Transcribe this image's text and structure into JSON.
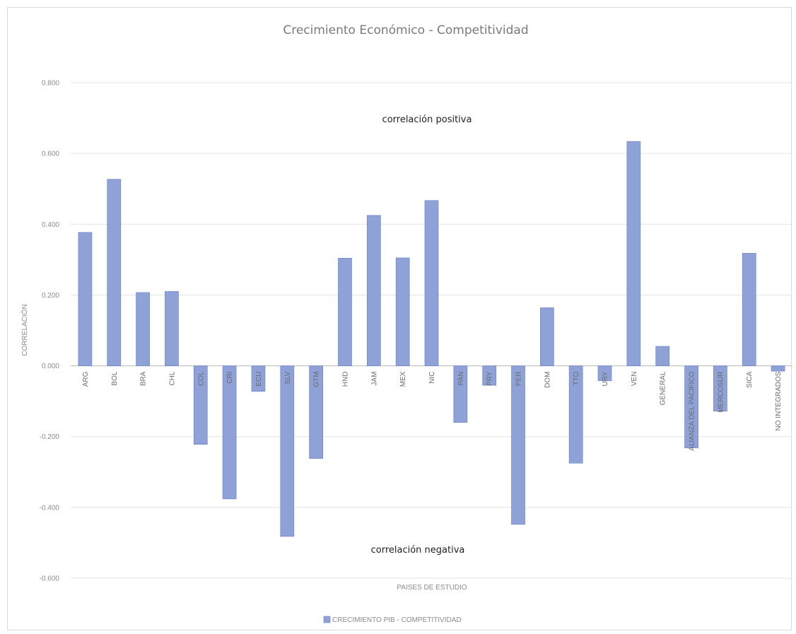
{
  "chart_data": {
    "type": "bar",
    "title": "Crecimiento  Económico  - Competitividad",
    "xlabel": "PAISES DE ESTUDIO",
    "ylabel": "CORRELACIÓN",
    "ylim": [
      -0.6,
      0.8
    ],
    "yticks": [
      0.8,
      0.6,
      0.4,
      0.2,
      0.0,
      -0.2,
      -0.4,
      -0.6
    ],
    "ytick_labels": [
      "0.800",
      "0.600",
      "0.400",
      "0.200",
      "0.000",
      "-0.200",
      "-0.400",
      "-0.600"
    ],
    "grid": true,
    "legend_position": "bottom",
    "annotations": {
      "positive": "correlación positiva",
      "negative": "correlación negativa"
    },
    "categories": [
      "ARG",
      "BOL",
      "BRA",
      "CHL",
      "COL",
      "CRI",
      "ECU",
      "SLV",
      "GTM",
      "HND",
      "JAM",
      "MEX",
      "NIC",
      "PAN",
      "PRY",
      "PER",
      "DOM",
      "TTO",
      "URY",
      "VEN",
      "GENERAL",
      "ALIANZA DEL PACÍFICO",
      "MERCOSUR",
      "SICA",
      "NO INTEGRADOS"
    ],
    "series": [
      {
        "name": "CRECIMIENTO PIB - COMPETITIVIDAD",
        "color": "#8ea2d8",
        "values": [
          0.377,
          0.527,
          0.207,
          0.21,
          -0.222,
          -0.376,
          -0.072,
          -0.482,
          -0.262,
          0.304,
          0.425,
          0.305,
          0.467,
          -0.16,
          -0.055,
          -0.448,
          0.164,
          -0.275,
          -0.042,
          0.634,
          0.055,
          -0.232,
          -0.128,
          0.318,
          -0.015
        ]
      }
    ]
  }
}
